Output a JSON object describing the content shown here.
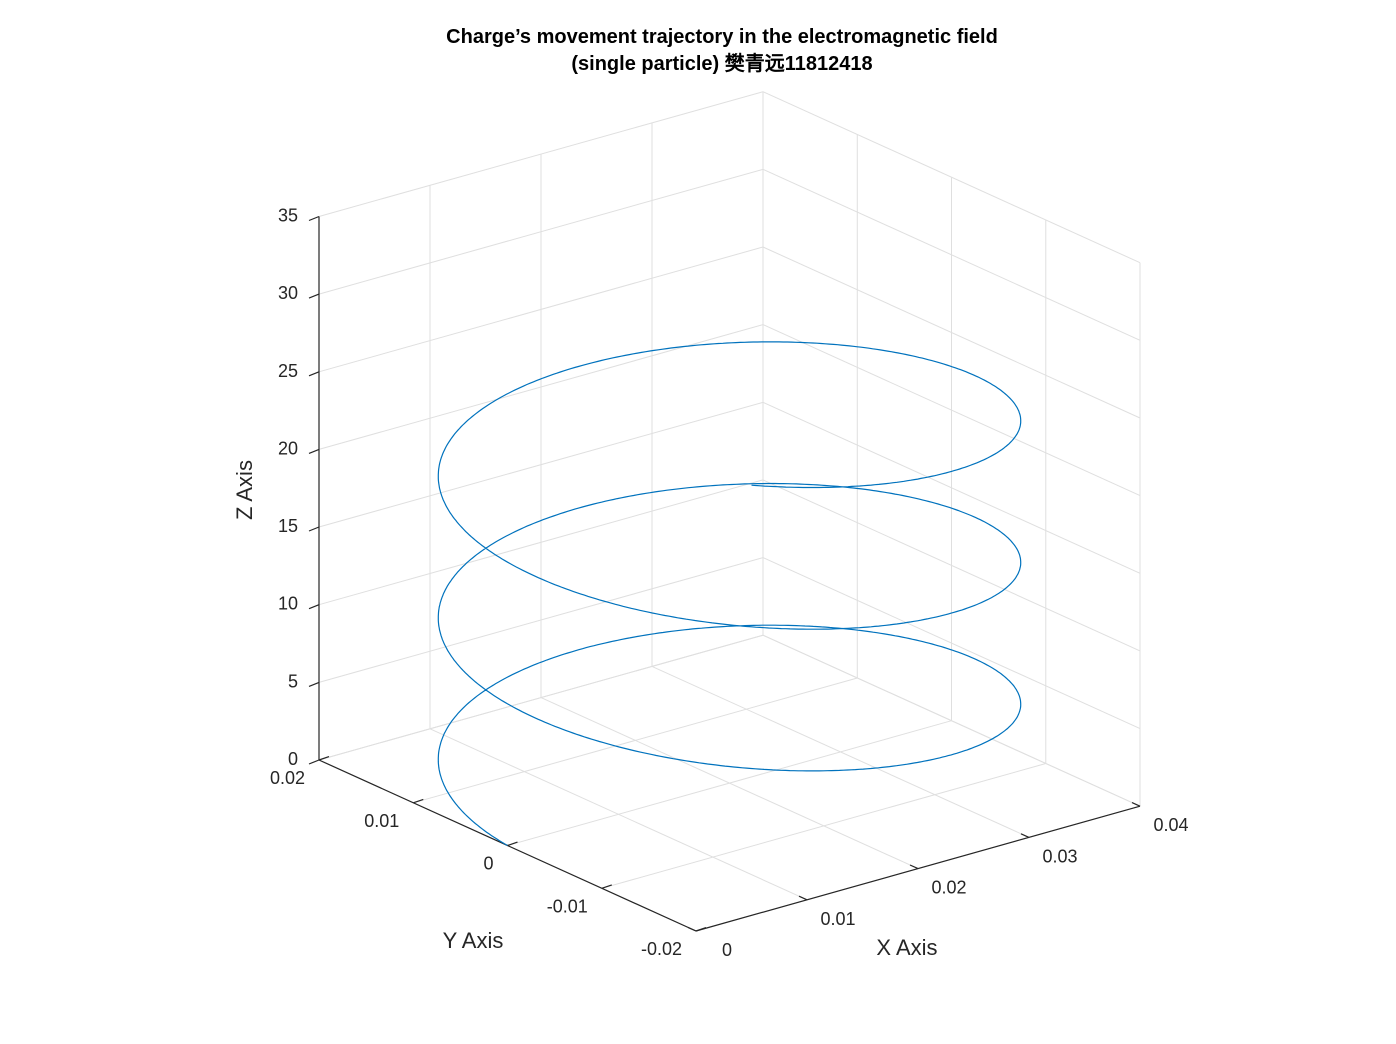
{
  "chart_data": {
    "type": "line3d",
    "title_line1": "Charge’s movement trajectory in the electromagnetic field",
    "title_line2": "(single particle) 樊青远11812418",
    "xlabel": "X Axis",
    "ylabel": "Y Axis",
    "zlabel": "Z Axis",
    "xlim": [
      0,
      0.04
    ],
    "ylim": [
      -0.02,
      0.02
    ],
    "zlim": [
      0,
      35
    ],
    "xticks": [
      0,
      0.01,
      0.02,
      0.03,
      0.04
    ],
    "xtick_labels": [
      "0",
      "0.01",
      "0.02",
      "0.03",
      "0.04"
    ],
    "yticks": [
      -0.02,
      -0.01,
      0,
      0.01,
      0.02
    ],
    "ytick_labels": [
      "-0.02",
      "-0.01",
      "0",
      "0.01",
      "0.02"
    ],
    "zticks": [
      0,
      5,
      10,
      15,
      20,
      25,
      30,
      35
    ],
    "ztick_labels": [
      "0",
      "5",
      "10",
      "15",
      "20",
      "25",
      "30",
      "35"
    ],
    "grid": true,
    "series": [
      {
        "color": "#0072bd",
        "helix": {
          "x_center": 0.02,
          "y_center": 0.0,
          "radius": 0.02,
          "z_start": 0,
          "z_end": 26,
          "turns": 2.85
        }
      }
    ]
  }
}
